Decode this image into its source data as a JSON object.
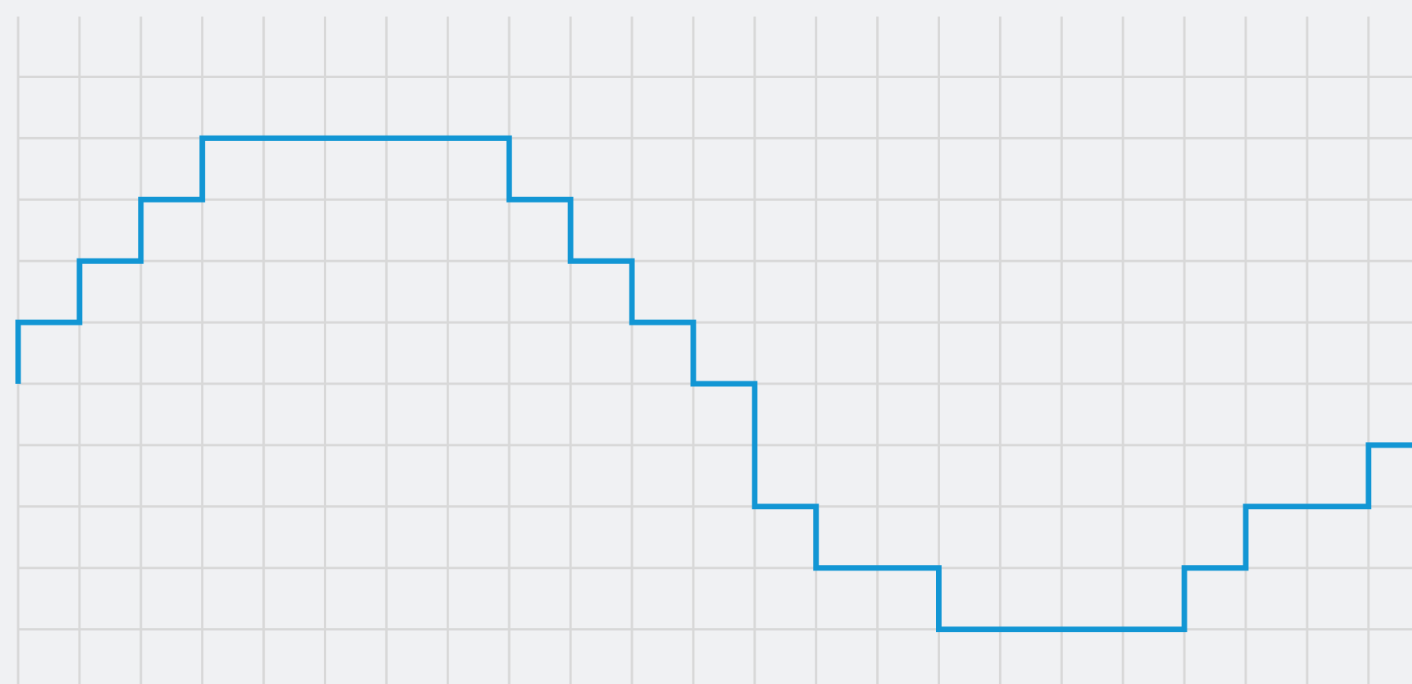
{
  "chart_data": {
    "type": "line",
    "interpolation": "step-after",
    "title": "",
    "xlabel": "",
    "ylabel": "",
    "x_range": [
      0,
      23
    ],
    "y_range": [
      -5,
      6
    ],
    "grid": "on",
    "legend": "none",
    "colors": {
      "background": "#f0f1f3",
      "grid": "#d8d8d8",
      "line": "#1296d4"
    },
    "series": [
      {
        "color": "#1296d4",
        "points": [
          {
            "x": 0,
            "y": 0
          },
          {
            "x": 0,
            "y": 1
          },
          {
            "x": 1,
            "y": 2
          },
          {
            "x": 2,
            "y": 3
          },
          {
            "x": 3,
            "y": 4
          },
          {
            "x": 4,
            "y": 4
          },
          {
            "x": 5,
            "y": 4
          },
          {
            "x": 6,
            "y": 4
          },
          {
            "x": 7,
            "y": 4
          },
          {
            "x": 8,
            "y": 3
          },
          {
            "x": 9,
            "y": 2
          },
          {
            "x": 10,
            "y": 1
          },
          {
            "x": 11,
            "y": 0
          },
          {
            "x": 12,
            "y": -2
          },
          {
            "x": 13,
            "y": -3
          },
          {
            "x": 14,
            "y": -3
          },
          {
            "x": 15,
            "y": -4
          },
          {
            "x": 16,
            "y": -4
          },
          {
            "x": 17,
            "y": -4
          },
          {
            "x": 18,
            "y": -4
          },
          {
            "x": 19,
            "y": -3
          },
          {
            "x": 20,
            "y": -2
          },
          {
            "x": 21,
            "y": -2
          },
          {
            "x": 22,
            "y": -1
          },
          {
            "x": 23,
            "y": -1
          }
        ]
      }
    ]
  }
}
